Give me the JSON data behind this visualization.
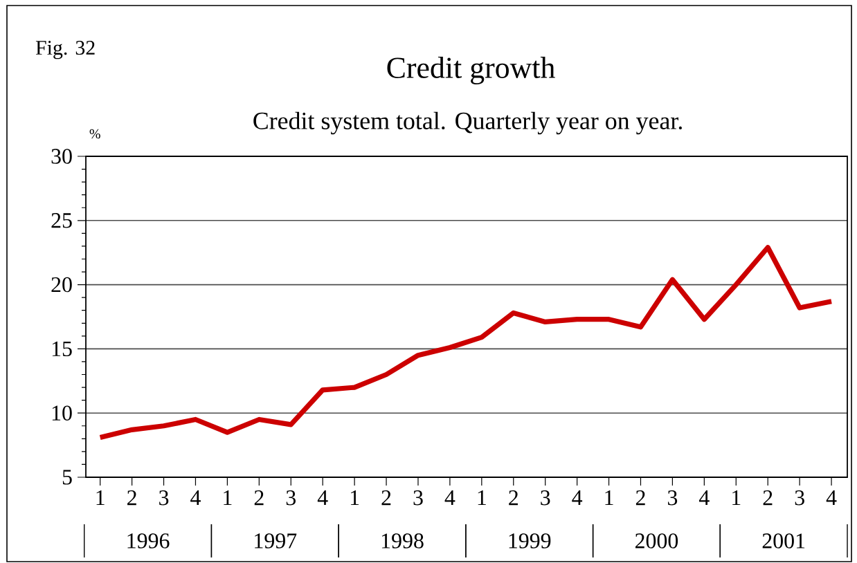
{
  "chart_data": {
    "type": "line",
    "title": "Credit growth",
    "subtitle": "Credit system total. Quarterly year on year.",
    "ylabel": "%",
    "annotations": [
      "Fig. 32",
      "1996",
      "1997",
      "1998",
      "1999",
      "2000",
      "2001"
    ],
    "categories": [
      "1",
      "2",
      "3",
      "4",
      "1",
      "2",
      "3",
      "4",
      "1",
      "2",
      "3",
      "4",
      "1",
      "2",
      "3",
      "4",
      "1",
      "2",
      "3",
      "4",
      "1",
      "2",
      "3",
      "4"
    ],
    "values": [
      8.1,
      8.7,
      9.0,
      9.5,
      8.5,
      9.5,
      9.1,
      11.8,
      12.0,
      13.0,
      14.5,
      15.1,
      15.9,
      17.8,
      17.1,
      17.3,
      17.3,
      16.7,
      20.4,
      17.3,
      20.0,
      22.9,
      18.2,
      18.7
    ],
    "color": "#cc0000",
    "ylim": [
      5,
      30
    ],
    "yticks": [
      5,
      10,
      15,
      20,
      25,
      30
    ],
    "grid": "y",
    "tick_labels": "xy"
  }
}
